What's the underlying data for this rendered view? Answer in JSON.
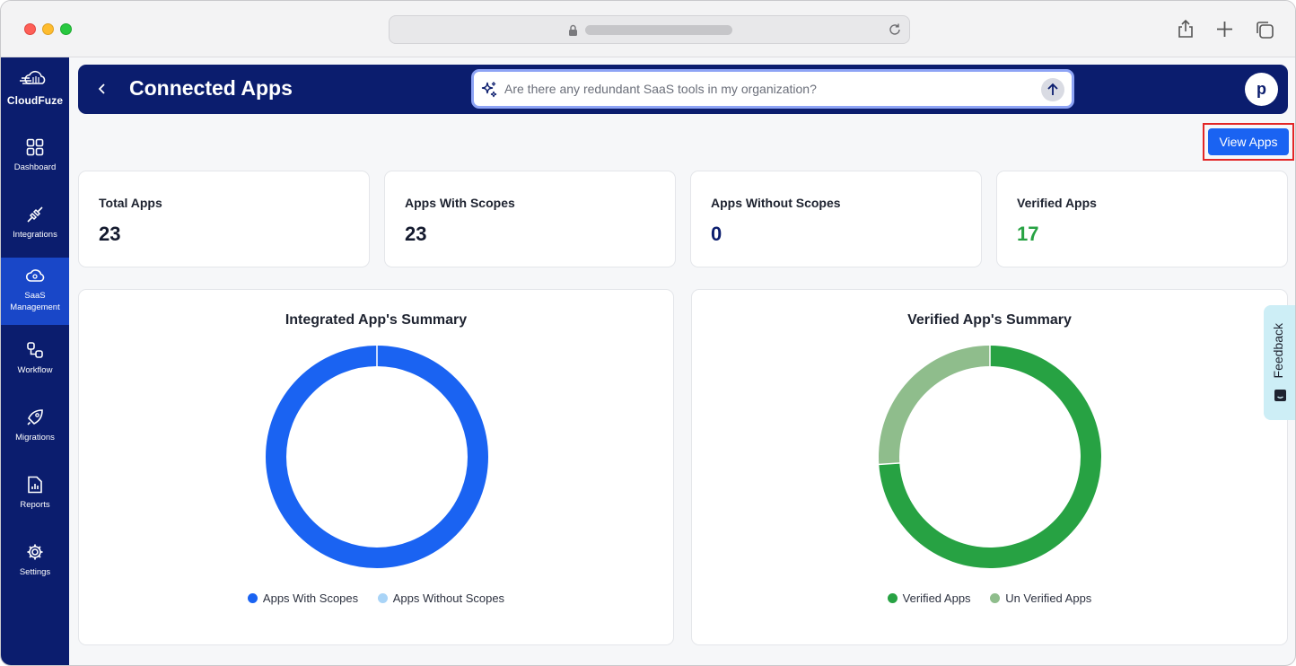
{
  "header": {
    "title": "Connected Apps",
    "search_placeholder": "Are there any redundant SaaS tools in my organization?",
    "avatar_letter": "p"
  },
  "logo": {
    "text": "CloudFuze"
  },
  "sidebar": {
    "items": [
      {
        "label": "Dashboard",
        "icon": "grid-icon"
      },
      {
        "label": "Integrations",
        "icon": "plug-icon"
      },
      {
        "label": "SaaS Management",
        "icon": "cloud-gear-icon",
        "active": true
      },
      {
        "label": "Workflow",
        "icon": "workflow-icon"
      },
      {
        "label": "Migrations",
        "icon": "rocket-icon"
      },
      {
        "label": "Reports",
        "icon": "report-icon"
      },
      {
        "label": "Settings",
        "icon": "gear-icon"
      }
    ]
  },
  "actions": {
    "view_apps": "View Apps"
  },
  "stats": [
    {
      "label": "Total Apps",
      "value": "23",
      "color": "#141a2e"
    },
    {
      "label": "Apps With Scopes",
      "value": "23",
      "color": "#141a2e"
    },
    {
      "label": "Apps Without Scopes",
      "value": "0",
      "color": "#0b1d6e"
    },
    {
      "label": "Verified Apps",
      "value": "17",
      "color": "#27a243"
    }
  ],
  "chart_data": [
    {
      "type": "pie",
      "title": "Integrated App's Summary",
      "categories": [
        "Apps With Scopes",
        "Apps Without Scopes"
      ],
      "values": [
        23,
        0
      ],
      "colors": [
        "#1a63f2",
        "#a9d4f7"
      ]
    },
    {
      "type": "pie",
      "title": "Verified App's Summary",
      "categories": [
        "Verified Apps",
        "Un Verified Apps"
      ],
      "values": [
        17,
        6
      ],
      "colors": [
        "#27a243",
        "#8fbd8c"
      ]
    }
  ],
  "feedback": {
    "label": "Feedback"
  }
}
